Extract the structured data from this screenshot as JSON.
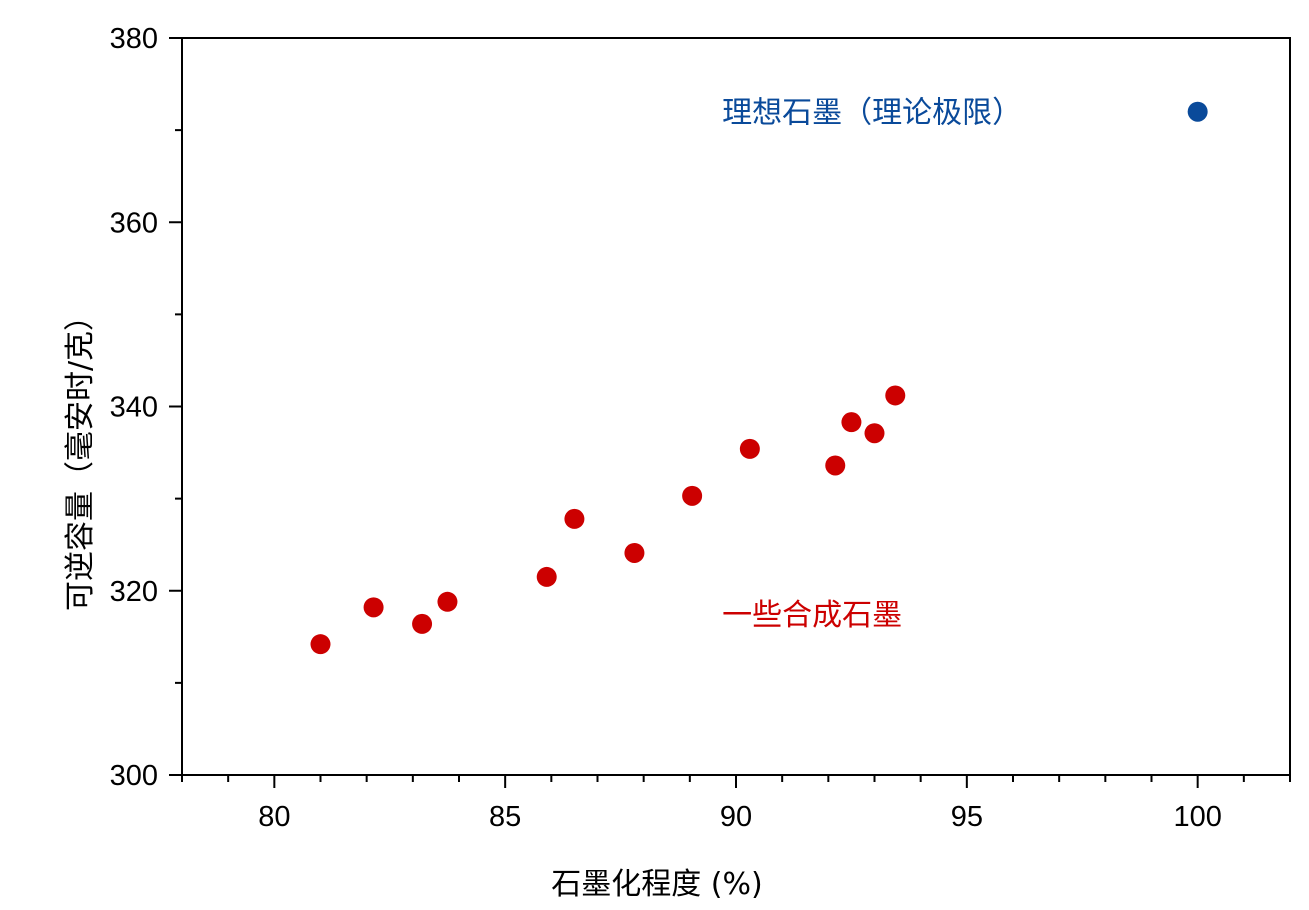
{
  "chart_data": {
    "type": "scatter",
    "title": "",
    "xlabel": "石墨化程度 (%)",
    "ylabel": "可逆容量（毫安时/克）",
    "xlim": [
      78,
      102
    ],
    "ylim": [
      300,
      380
    ],
    "x_ticks_major": [
      80,
      85,
      90,
      95,
      100
    ],
    "y_ticks_major": [
      300,
      320,
      340,
      360,
      380
    ],
    "grid": false,
    "series": [
      {
        "color": "#cc0000",
        "points": [
          {
            "x": 81.0,
            "y": 314.2
          },
          {
            "x": 82.15,
            "y": 318.2
          },
          {
            "x": 83.2,
            "y": 316.4
          },
          {
            "x": 83.75,
            "y": 318.8
          },
          {
            "x": 85.9,
            "y": 321.5
          },
          {
            "x": 86.5,
            "y": 327.8
          },
          {
            "x": 87.8,
            "y": 324.1
          },
          {
            "x": 89.05,
            "y": 330.3
          },
          {
            "x": 90.3,
            "y": 335.4
          },
          {
            "x": 92.15,
            "y": 333.6
          },
          {
            "x": 92.5,
            "y": 338.3
          },
          {
            "x": 93.0,
            "y": 337.1
          },
          {
            "x": 93.45,
            "y": 341.2
          }
        ]
      },
      {
        "color": "#0a4a9a",
        "points": [
          {
            "x": 100.0,
            "y": 372.0
          }
        ]
      }
    ],
    "annotations": [
      {
        "text": "理想石墨（理论极限）",
        "x": 89.7,
        "y": 372,
        "color": "#0a4a9a"
      },
      {
        "text": "一些合成石墨",
        "x": 89.7,
        "y": 317.5,
        "color": "#cc0000"
      }
    ]
  }
}
